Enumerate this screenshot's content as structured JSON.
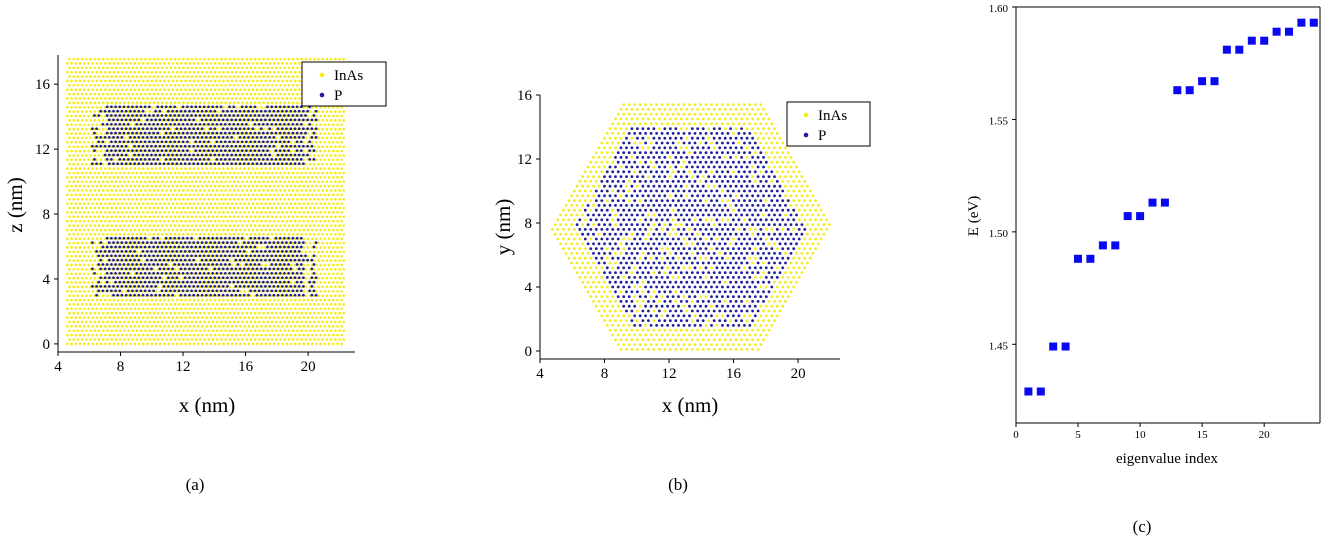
{
  "colors": {
    "inas": "#f5ec1f",
    "p": "#1d1d9e",
    "eigen": "#0a0af0"
  },
  "captions": {
    "a": "(a)",
    "b": "(b)",
    "c": "(c)"
  },
  "chart_data": [
    {
      "type": "scatter",
      "xlabel": "x (nm)",
      "ylabel": "z (nm)",
      "xlim": [
        4,
        23
      ],
      "ylim": [
        -0.5,
        17.8
      ],
      "xticks": [
        "4",
        "8",
        "12",
        "16",
        "20"
      ],
      "yticks": [
        "0",
        "4",
        "8",
        "12",
        "16"
      ],
      "legend": {
        "placement": "top-right",
        "entries": [
          "InAs",
          "P"
        ]
      },
      "series": [
        {
          "name": "InAs",
          "x_range": [
            4.6,
            22.4
          ],
          "y_range": [
            0,
            17.6
          ]
        },
        {
          "name": "P",
          "blocks": [
            {
              "x_range": [
                6.2,
                20.6
              ],
              "y_range": [
                11.1,
                14.8
              ]
            },
            {
              "x_range": [
                6.2,
                20.6
              ],
              "y_range": [
                3.0,
                6.7
              ]
            }
          ]
        }
      ]
    },
    {
      "type": "scatter",
      "xlabel": "x (nm)",
      "ylabel": "y (nm)",
      "xlim": [
        4,
        22.6
      ],
      "ylim": [
        -0.5,
        16
      ],
      "xticks": [
        "4",
        "8",
        "12",
        "16",
        "20"
      ],
      "yticks": [
        "0",
        "4",
        "8",
        "12",
        "16"
      ],
      "legend": {
        "placement": "top-right",
        "entries": [
          "InAs",
          "P"
        ]
      },
      "series": [
        {
          "name": "InAs",
          "hexagon": {
            "center": [
              13.4,
              7.8
            ],
            "half_width": 8.8,
            "half_height": 7.7
          }
        },
        {
          "name": "P",
          "hexagon": {
            "center": [
              13.4,
              7.8
            ],
            "half_width": 7.2,
            "half_height": 6.3
          }
        }
      ]
    },
    {
      "type": "scatter",
      "xlabel": "eigenvalue index",
      "ylabel": "E (eV)",
      "xlim": [
        0,
        24.5
      ],
      "ylim": [
        1.415,
        1.6
      ],
      "xticks": [
        "0",
        "5",
        "10",
        "15",
        "20"
      ],
      "yticks": [
        "1.45",
        "1.50",
        "1.55",
        "1.60"
      ],
      "x": [
        1,
        2,
        3,
        4,
        5,
        6,
        7,
        8,
        9,
        10,
        11,
        12,
        13,
        14,
        15,
        16,
        17,
        18,
        19,
        20,
        21,
        22,
        23,
        24
      ],
      "y": [
        1.429,
        1.429,
        1.449,
        1.449,
        1.488,
        1.488,
        1.494,
        1.494,
        1.507,
        1.507,
        1.513,
        1.513,
        1.563,
        1.563,
        1.567,
        1.567,
        1.581,
        1.581,
        1.585,
        1.585,
        1.589,
        1.589,
        1.593,
        1.593
      ]
    }
  ]
}
